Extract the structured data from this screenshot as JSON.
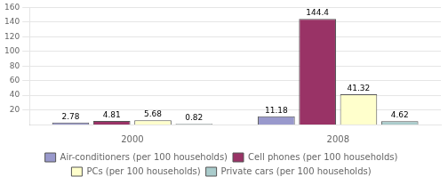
{
  "chart_data": {
    "type": "bar",
    "categories": [
      "2000",
      "2008"
    ],
    "series": [
      {
        "name": "Air-conditioners (per 100 households)",
        "color": "#9999CC",
        "values": [
          2.78,
          11.18
        ]
      },
      {
        "name": "Cell phones (per 100 households)",
        "color": "#993366",
        "values": [
          4.81,
          144.4
        ]
      },
      {
        "name": "PCs (per 100 households)",
        "color": "#FFFFCC",
        "values": [
          5.68,
          41.32
        ]
      },
      {
        "name": "Private cars (per 100 households)",
        "color": "#AACCCC",
        "values": [
          0.82,
          4.62
        ]
      }
    ],
    "ylim": [
      0,
      160
    ],
    "yticks": [
      20,
      40,
      60,
      80,
      100,
      120,
      140,
      160
    ],
    "grid": true,
    "legend": "bottom",
    "data_labels": true
  }
}
